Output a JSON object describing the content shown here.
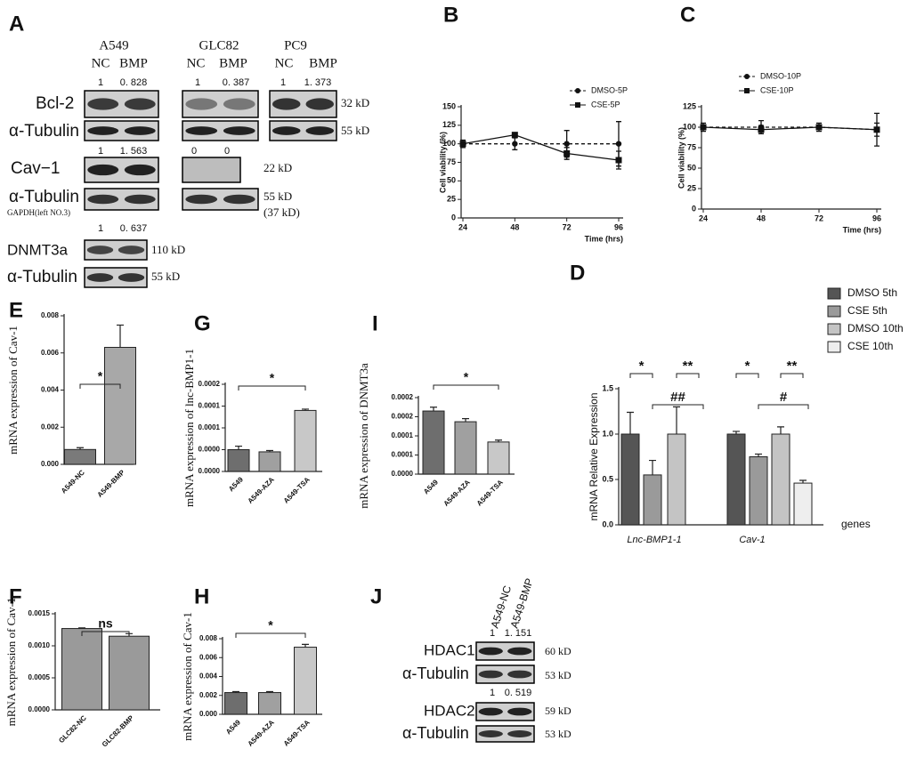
{
  "panel_letters": [
    "A",
    "B",
    "C",
    "D",
    "E",
    "F",
    "G",
    "H",
    "I",
    "J"
  ],
  "blot_a": {
    "cell_lines": [
      "A549",
      "GLC82",
      "PC9"
    ],
    "conditions": [
      "NC",
      "BMP",
      "NC",
      "BMP",
      "NC",
      "BMP"
    ],
    "bcl2_ratios": [
      "1",
      "0. 828",
      "1",
      "0. 387",
      "1",
      "1. 373"
    ],
    "cav1_ratios": [
      "1",
      "1. 563",
      "0",
      "0"
    ],
    "dnmt3a_ratios": [
      "1",
      "0. 637"
    ],
    "rows": [
      "Bcl-2",
      "α-Tubulin",
      "Cav−1",
      "α-Tubulin",
      "DNMT3a",
      "α-Tubulin"
    ],
    "gapdh_note": "GAPDH(left NO.3)",
    "sizes": [
      "32 kD",
      "55 kD",
      "22 kD",
      "55 kD",
      "(37 kD)",
      "110 kD",
      "55 kD"
    ]
  },
  "blot_j": {
    "lanes": [
      "A549-NC",
      "A549-BMP"
    ],
    "hdac1_ratios": [
      "1",
      "1. 151"
    ],
    "hdac2_ratios": [
      "1",
      "0. 519"
    ],
    "rows": [
      "HDAC1",
      "α-Tubulin",
      "HDAC2",
      "α-Tubulin"
    ],
    "sizes": [
      "60 kD",
      "53 kD",
      "59 kD",
      "53 kD"
    ]
  },
  "chart_data": [
    {
      "type": "line",
      "y_label": "Cell viability (%)",
      "x_label": "Time (hrs)",
      "x": [
        24,
        48,
        72,
        96
      ],
      "xlim": [
        24,
        96
      ],
      "xticks": [
        24,
        48,
        72,
        96
      ],
      "ylim": [
        0,
        150
      ],
      "yticks": [
        0,
        25,
        50,
        75,
        100,
        125,
        150
      ],
      "series": [
        {
          "name": "DMSO-5P",
          "color": "#111111",
          "marker": "circle",
          "linestyle": "dashed",
          "values": [
            100,
            100,
            100,
            100
          ],
          "errors": [
            5,
            8,
            18,
            30
          ]
        },
        {
          "name": "CSE-5P",
          "color": "#111111",
          "marker": "square",
          "linestyle": "solid",
          "values": [
            100,
            112,
            87,
            78
          ],
          "errors": [
            3,
            3,
            8,
            12
          ]
        }
      ]
    },
    {
      "type": "line",
      "y_label": "Cell viability (%)",
      "x_label": "Time (hrs)",
      "x": [
        24,
        48,
        72,
        96
      ],
      "xlim": [
        24,
        96
      ],
      "xticks": [
        24,
        48,
        72,
        96
      ],
      "ylim": [
        0,
        125
      ],
      "yticks": [
        0,
        25,
        50,
        75,
        100,
        125
      ],
      "series": [
        {
          "name": "DMSO-10P",
          "color": "#111111",
          "marker": "circle",
          "linestyle": "dashed",
          "values": [
            100,
            100,
            100,
            97
          ],
          "errors": [
            5,
            8,
            5,
            20
          ]
        },
        {
          "name": "CSE-10P",
          "color": "#111111",
          "marker": "square",
          "linestyle": "solid",
          "values": [
            100,
            97,
            100,
            97
          ],
          "errors": [
            3,
            5,
            3,
            8
          ]
        }
      ]
    },
    {
      "type": "grouped_bar",
      "y_label": "mRNA Relative Expression",
      "x_label": "genes",
      "categories": [
        "Lnc-BMP1-1",
        "Cav-1"
      ],
      "ylim": [
        0,
        1.5
      ],
      "yticks": [
        {
          "value": 0,
          "label": "0.0"
        },
        0.5,
        {
          "value": 1,
          "label": "1.0"
        },
        1.5
      ],
      "series": [
        {
          "name": "DMSO 5th",
          "color": "#555555",
          "values": [
            1.0,
            1.0
          ],
          "errors": [
            0.24,
            0.03
          ]
        },
        {
          "name": "CSE 5th",
          "color": "#9a9a9a",
          "values": [
            0.55,
            0.75
          ],
          "errors": [
            0.16,
            0.03
          ]
        },
        {
          "name": "DMSO 10th",
          "color": "#c4c4c4",
          "values": [
            1.0,
            1.0
          ],
          "errors": [
            0.3,
            0.08
          ]
        },
        {
          "name": "CSE 10th",
          "color": "#eeeeee",
          "values": [
            null,
            0.46
          ],
          "errors": [
            null,
            0.03
          ]
        }
      ],
      "annotations": [
        "*",
        "**",
        "##",
        "*",
        "**",
        "#"
      ]
    },
    {
      "type": "bar",
      "y_label": "mRNA expression of Cav-1",
      "categories": [
        "A549-NC",
        "A549-BMP"
      ],
      "values": [
        0.0008,
        0.0063
      ],
      "errors": [
        0.0001,
        0.0012
      ],
      "colors": [
        "#7a7a7a",
        "#a8a8a8"
      ],
      "ylim": [
        0,
        0.008
      ],
      "yticks": [
        {
          "value": 0,
          "label": "0.000"
        },
        0.002,
        0.004,
        0.006,
        0.008
      ],
      "annotations": [
        "*"
      ]
    },
    {
      "type": "bar",
      "y_label": "mRNA expression of Cav-1",
      "categories": [
        "GLC82-NC",
        "GLC82-BMP"
      ],
      "values": [
        0.00127,
        0.00115
      ],
      "errors": [
        1e-05,
        4e-05
      ],
      "colors": [
        "#9a9a9a",
        "#9a9a9a"
      ],
      "ylim": [
        0,
        0.0015
      ],
      "yticks": [
        {
          "value": 0,
          "label": "0.0000"
        },
        0.0005,
        {
          "value": 0.001,
          "label": "0.0010"
        },
        0.0015
      ],
      "annotations": [
        "ns"
      ]
    },
    {
      "type": "bar",
      "y_label": "mRNA expression of lnc-BMP1-1",
      "categories": [
        "A549",
        "A549-AZA",
        "A549-TSA"
      ],
      "values": [
        5e-05,
        4.5e-05,
        0.00014
      ],
      "errors": [
        8e-06,
        3e-06,
        3e-06
      ],
      "colors": [
        "#6e6e6e",
        "#a0a0a0",
        "#c8c8c8"
      ],
      "ylim": [
        0,
        0.0002
      ],
      "yticks": [
        {
          "value": 0,
          "label": "0.0000"
        },
        {
          "value": 5e-05,
          "label": "0.0000"
        },
        0.0001,
        {
          "value": 0.00015,
          "label": "0.0001"
        },
        0.0002
      ],
      "annotations": [
        "*"
      ]
    },
    {
      "type": "bar",
      "y_label": "mRNA expression of Cav-1",
      "categories": [
        "A549",
        "A549-AZA",
        "A549-TSA"
      ],
      "values": [
        0.0023,
        0.0023,
        0.0071
      ],
      "errors": [
        0.0001,
        0.0001,
        0.0003
      ],
      "colors": [
        "#6e6e6e",
        "#a0a0a0",
        "#c8c8c8"
      ],
      "ylim": [
        0,
        0.008
      ],
      "yticks": [
        {
          "value": 0,
          "label": "0.000"
        },
        0.002,
        0.004,
        0.006,
        0.008
      ],
      "annotations": [
        "*"
      ]
    },
    {
      "type": "bar",
      "y_label": "mRNA expression of DNMT3a",
      "categories": [
        "A549",
        "A549-AZA",
        "A549-TSA"
      ],
      "values": [
        0.000165,
        0.000137,
        8.4e-05
      ],
      "errors": [
        1e-05,
        8e-06,
        5e-06
      ],
      "colors": [
        "#6e6e6e",
        "#a0a0a0",
        "#c8c8c8"
      ],
      "ylim": [
        0,
        0.0002
      ],
      "yticks": [
        {
          "value": 0,
          "label": "0.0000"
        },
        {
          "value": 5e-05,
          "label": "0.0001"
        },
        0.0001,
        {
          "value": 0.00015,
          "label": "0.0002"
        },
        0.0002
      ],
      "annotations": [
        "*"
      ]
    }
  ]
}
